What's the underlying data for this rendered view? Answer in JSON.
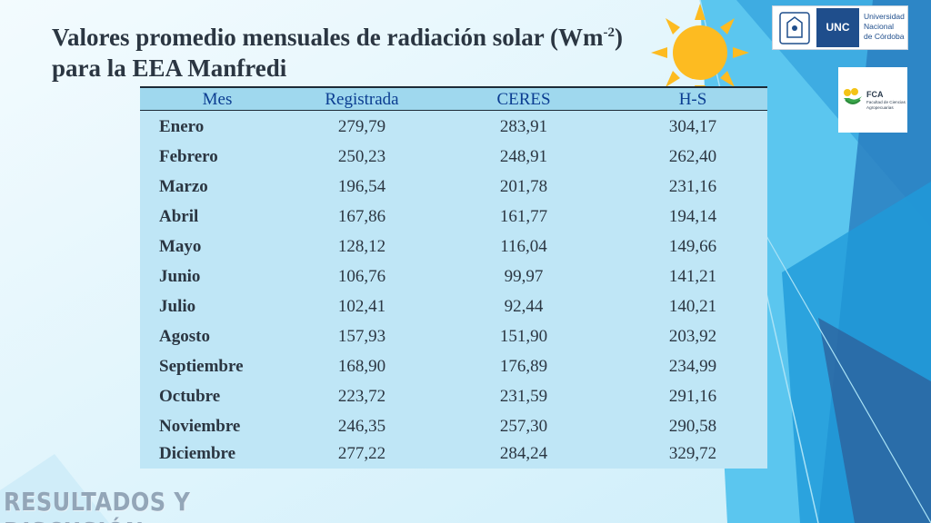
{
  "slide": {
    "title_line1_main": "Valores promedio mensuales de radiación solar (Wm",
    "title_line1_sup": "-2",
    "title_line1_end": ")",
    "title_line2": "para la EEA Manfredi",
    "footer": "RESULTADOS Y DISCUSIÓN"
  },
  "logos": {
    "unc_abbr": "UNC",
    "unc_name": [
      "Universidad",
      "Nacional",
      "de Córdoba"
    ],
    "fca_abbr": "FCA",
    "fca_name": "Facultad de Ciencias Agropecuarias"
  },
  "colors": {
    "accent_blue": "#1f4e8c",
    "table_body": "#bfe6f6",
    "table_header": "#9fd8ee",
    "header_text": "#0b3d91",
    "sun": "#fdbb21"
  },
  "table": {
    "columns": [
      "Mes",
      "Registrada",
      "CERES",
      "H-S"
    ],
    "rows": [
      [
        "Enero",
        "279,79",
        "283,91",
        "304,17"
      ],
      [
        "Febrero",
        "250,23",
        "248,91",
        "262,40"
      ],
      [
        "Marzo",
        "196,54",
        "201,78",
        "231,16"
      ],
      [
        "Abril",
        "167,86",
        "161,77",
        "194,14"
      ],
      [
        "Mayo",
        "128,12",
        "116,04",
        "149,66"
      ],
      [
        "Junio",
        "106,76",
        "99,97",
        "141,21"
      ],
      [
        "Julio",
        "102,41",
        "92,44",
        "140,21"
      ],
      [
        "Agosto",
        "157,93",
        "151,90",
        "203,92"
      ],
      [
        "Septiembre",
        "168,90",
        "176,89",
        "234,99"
      ],
      [
        "Octubre",
        "223,72",
        "231,59",
        "291,16"
      ],
      [
        "Noviembre",
        "246,35",
        "257,30",
        "290,58"
      ],
      [
        "Diciembre",
        "277,22",
        "284,24",
        "329,72"
      ]
    ]
  }
}
